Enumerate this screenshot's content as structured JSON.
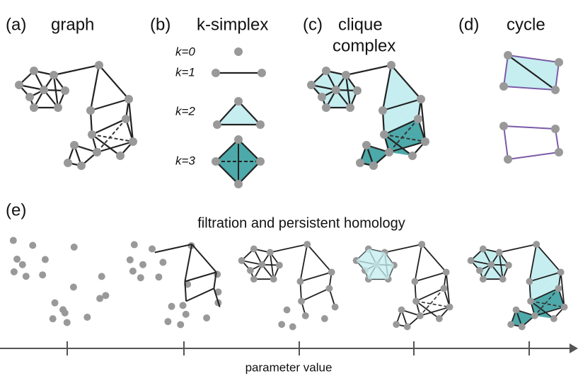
{
  "panels": {
    "a": {
      "tag": "(a)",
      "title": "graph"
    },
    "b": {
      "tag": "(b)",
      "title": "k-simplex",
      "levels": [
        "k=0",
        "k=1",
        "k=2",
        "k=3"
      ]
    },
    "c": {
      "tag": "(c)",
      "title": [
        "clique",
        "complex"
      ]
    },
    "d": {
      "tag": "(d)",
      "title": "cycle"
    },
    "e": {
      "tag": "(e)",
      "title": "filtration and persistent homology",
      "axis_label": "parameter value"
    }
  }
}
